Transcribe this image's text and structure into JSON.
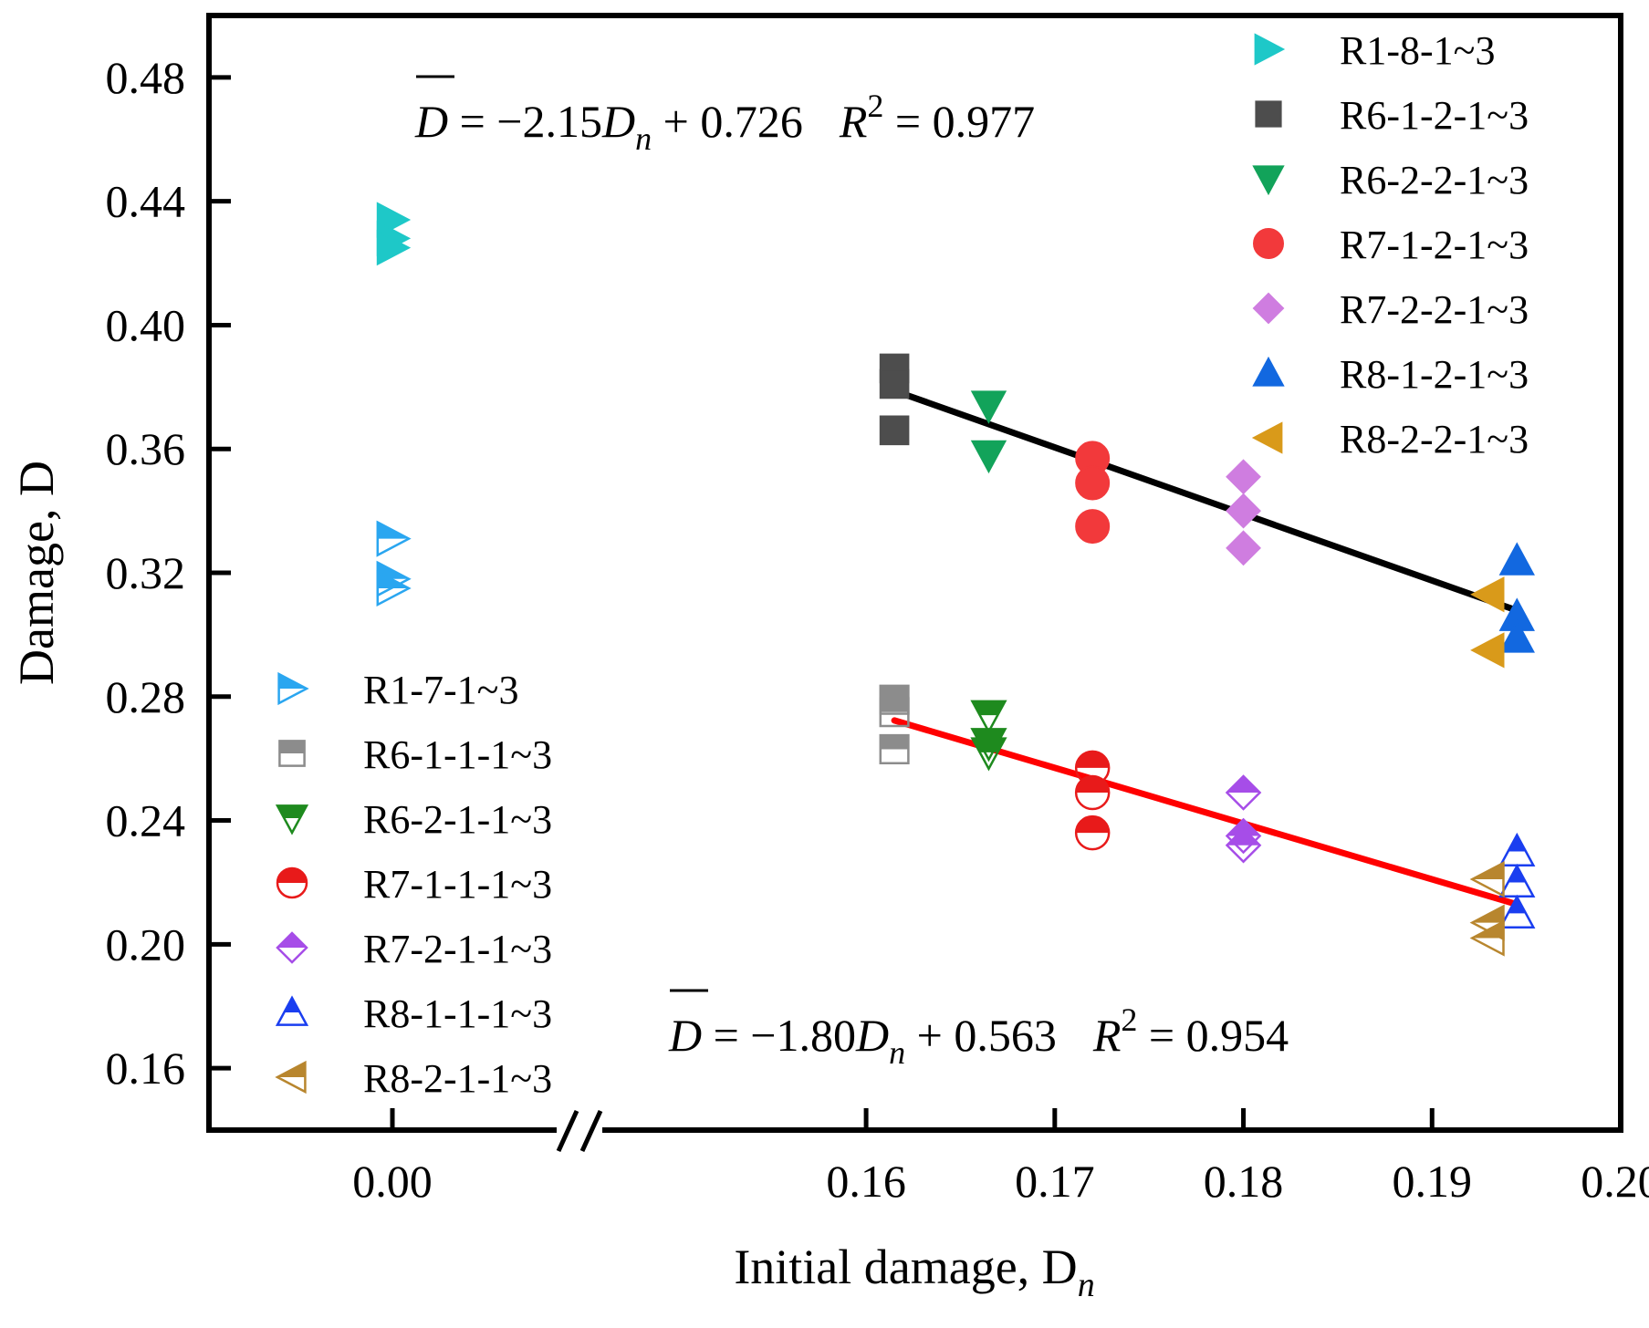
{
  "chart_data": {
    "type": "scatter",
    "xlabel": "Initial damage, D",
    "xlabel_sub": "n",
    "ylabel": "Damage, D",
    "ylim": [
      0.14,
      0.5
    ],
    "y_ticks": [
      "0.16",
      "0.20",
      "0.24",
      "0.28",
      "0.32",
      "0.36",
      "0.40",
      "0.44",
      "0.48"
    ],
    "y_tick_values": [
      0.16,
      0.2,
      0.24,
      0.28,
      0.32,
      0.36,
      0.4,
      0.44,
      0.48
    ],
    "x_broken": true,
    "x_segments": [
      {
        "xlim": [
          -0.009,
          0.009
        ],
        "ticks": [
          "0.00"
        ],
        "tick_values": [
          0.0
        ]
      },
      {
        "xlim": [
          0.145,
          0.2
        ],
        "ticks": [
          "0.16",
          "0.17",
          "0.18",
          "0.19",
          "0.20"
        ],
        "tick_values": [
          0.16,
          0.17,
          0.18,
          0.19,
          0.2
        ]
      }
    ],
    "grid": false,
    "series": [
      {
        "name": "R1-8-1~3",
        "marker": "triangle-right",
        "fill": "full",
        "color": "#1ec8c8",
        "x": [
          0,
          0,
          0
        ],
        "y": [
          0.434,
          0.428,
          0.425
        ]
      },
      {
        "name": "R6-1-2-1~3",
        "marker": "square",
        "fill": "full",
        "color": "#4d4d4d",
        "x": [
          0.1615,
          0.1615,
          0.1615
        ],
        "y": [
          0.386,
          0.381,
          0.366
        ]
      },
      {
        "name": "R6-2-2-1~3",
        "marker": "triangle-down",
        "fill": "full",
        "color": "#12a35a",
        "x": [
          0.1665,
          0.1665
        ],
        "y": [
          0.374,
          0.358
        ]
      },
      {
        "name": "R7-1-2-1~3",
        "marker": "circle",
        "fill": "full",
        "color": "#f2393b",
        "x": [
          0.172,
          0.172,
          0.172
        ],
        "y": [
          0.357,
          0.349,
          0.335
        ]
      },
      {
        "name": "R7-2-2-1~3",
        "marker": "diamond",
        "fill": "full",
        "color": "#cf7de0",
        "x": [
          0.18,
          0.18,
          0.18
        ],
        "y": [
          0.351,
          0.34,
          0.328
        ]
      },
      {
        "name": "R8-1-2-1~3",
        "marker": "triangle-up",
        "fill": "full",
        "color": "#1268e0",
        "x": [
          0.1945,
          0.1945,
          0.1945
        ],
        "y": [
          0.324,
          0.306,
          0.299
        ]
      },
      {
        "name": "R8-2-2-1~3",
        "marker": "triangle-left",
        "fill": "full",
        "color": "#d99a1a",
        "x": [
          0.193,
          0.193
        ],
        "y": [
          0.313,
          0.295
        ]
      },
      {
        "name": "R1-7-1~3",
        "marker": "triangle-right",
        "fill": "half",
        "color": "#2aa6f0",
        "x": [
          0,
          0,
          0
        ],
        "y": [
          0.331,
          0.318,
          0.315
        ]
      },
      {
        "name": "R6-1-1-1~3",
        "marker": "square",
        "fill": "half",
        "color": "#8c8c8c",
        "x": [
          0.1615,
          0.1615,
          0.1615
        ],
        "y": [
          0.279,
          0.275,
          0.263
        ]
      },
      {
        "name": "R6-2-1-1~3",
        "marker": "triangle-down",
        "fill": "half",
        "color": "#1e8a1e",
        "x": [
          0.1665,
          0.1665,
          0.1665
        ],
        "y": [
          0.274,
          0.265,
          0.262
        ]
      },
      {
        "name": "R7-1-1-1~3",
        "marker": "circle",
        "fill": "half",
        "color": "#e81a1a",
        "x": [
          0.172,
          0.172,
          0.172
        ],
        "y": [
          0.257,
          0.249,
          0.236
        ]
      },
      {
        "name": "R7-2-1-1~3",
        "marker": "diamond",
        "fill": "half",
        "color": "#a64de8",
        "x": [
          0.18,
          0.18,
          0.18
        ],
        "y": [
          0.249,
          0.235,
          0.232
        ]
      },
      {
        "name": "R8-1-1-1~3",
        "marker": "triangle-up",
        "fill": "half",
        "color": "#1a3ef0",
        "x": [
          0.1945,
          0.1945,
          0.1945
        ],
        "y": [
          0.23,
          0.22,
          0.21
        ]
      },
      {
        "name": "R8-2-1-1~3",
        "marker": "triangle-left",
        "fill": "half",
        "color": "#b8862e",
        "x": [
          0.193,
          0.193,
          0.193
        ],
        "y": [
          0.221,
          0.207,
          0.202
        ]
      }
    ],
    "fits": [
      {
        "label": "D = −2.15 Dn + 0.726   R² = 0.977",
        "slope": -2.15,
        "intercept": 0.726,
        "x_range": [
          0.1615,
          0.1945
        ],
        "color": "#000000"
      },
      {
        "label": "D = −1.80 Dn + 0.563   R² = 0.954",
        "slope": -1.8,
        "intercept": 0.563,
        "x_range": [
          0.1615,
          0.1945
        ],
        "color": "#ff0000"
      }
    ],
    "annotations": {
      "eq1": {
        "lhs": "D",
        "mid": " = −2.15",
        "var": "D",
        "sub": "n",
        "rest": " + 0.726",
        "r": "R",
        "sup": "2",
        "rval": " = 0.977"
      },
      "eq2": {
        "lhs": "D",
        "mid": " = −1.80",
        "var": "D",
        "sub": "n",
        "rest": " + 0.563",
        "r": "R",
        "sup": "2",
        "rval": " = 0.954"
      }
    },
    "legend_placement": [
      "top-right",
      "bottom-left"
    ]
  }
}
